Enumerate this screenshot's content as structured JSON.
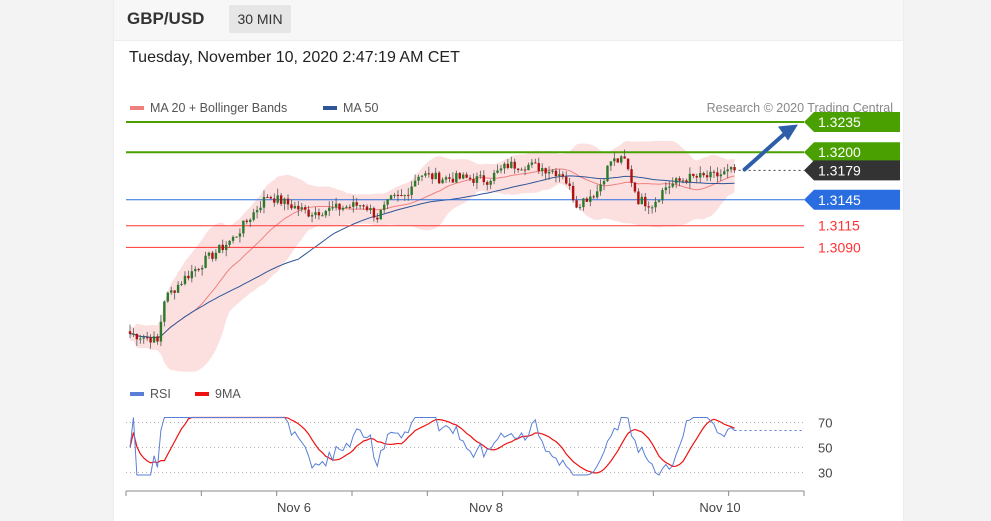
{
  "header": {
    "symbol": "GBP/USD",
    "timeframe": "30 MIN"
  },
  "datetime": "Tuesday, November 10, 2020 2:47:19 AM CET",
  "legend": {
    "ma20": {
      "label": "MA 20 + Bollinger Bands",
      "color": "#f08080"
    },
    "ma50": {
      "label": "MA 50",
      "color": "#2f5597"
    },
    "credit": "Research © 2020 Trading Central"
  },
  "rsi_legend": {
    "rsi": {
      "label": "RSI",
      "color": "#5a7fd6"
    },
    "ma9": {
      "label": "9MA",
      "color": "#ee1111"
    }
  },
  "chart_data": [
    {
      "type": "candlestick",
      "title": "",
      "levels": [
        {
          "value": 1.3235,
          "label": "1.3235",
          "kind": "resistance",
          "color": "#4aa000",
          "badge": true
        },
        {
          "value": 1.32,
          "label": "1.3200",
          "kind": "resistance",
          "color": "#4aa000",
          "badge": true
        },
        {
          "value": 1.3179,
          "label": "1.3179",
          "kind": "current",
          "color": "#333333",
          "badge": true
        },
        {
          "value": 1.3145,
          "label": "1.3145",
          "kind": "pivot",
          "color": "#2a6de0",
          "badge": true
        },
        {
          "value": 1.3115,
          "label": "1.3115",
          "kind": "support",
          "color": "#ff3333",
          "badge": false
        },
        {
          "value": 1.309,
          "label": "1.3090",
          "kind": "support",
          "color": "#ff3333",
          "badge": false
        }
      ],
      "ylim": [
        1.2925,
        1.3265
      ],
      "x_ticks": [
        "Nov 6",
        "Nov 8",
        "Nov 10"
      ],
      "candle_color": "#2a7a2a",
      "candle_down_color": "#b01010",
      "forecast": "up-arrow",
      "forecast_color": "#2f5ea8"
    },
    {
      "type": "line",
      "title": "",
      "series": [
        {
          "name": "RSI",
          "color": "#5a7fd6"
        },
        {
          "name": "9MA",
          "color": "#ee1111"
        }
      ],
      "y_ticks": [
        70,
        50,
        30
      ],
      "ylim": [
        20,
        80
      ]
    }
  ]
}
